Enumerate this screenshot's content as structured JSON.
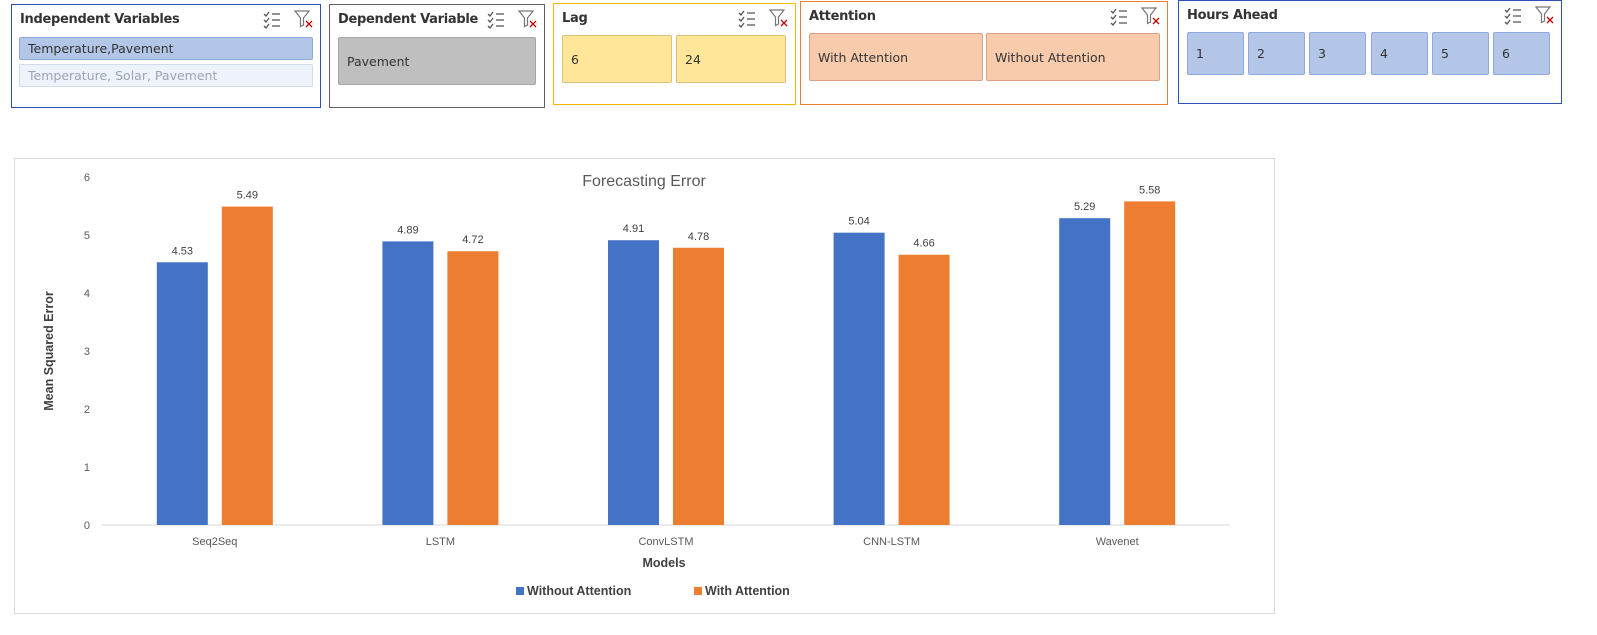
{
  "slicers": {
    "independent": {
      "title": "Independent Variables",
      "items": [
        "Temperature,Pavement",
        "Temperature, Solar, Pavement"
      ],
      "border_color": "#2e4fb5",
      "selected_fill": "#b4c6e7",
      "unselected_fill": "#eef2fa"
    },
    "dependent": {
      "title": "Dependent Variable",
      "items": [
        "Pavement"
      ],
      "border_color": "#5f5f5f",
      "fill": "#bfbfbf"
    },
    "lag": {
      "title": "Lag",
      "items": [
        "6",
        "24"
      ],
      "border_color": "#f2b800",
      "fill": "#ffe699"
    },
    "attention": {
      "title": "Attention",
      "items": [
        "With Attention",
        "Without Attention"
      ],
      "border_color": "#ed7d31",
      "fill": "#f8cbad"
    },
    "hours_ahead": {
      "title": "Hours Ahead",
      "items": [
        "1",
        "2",
        "3",
        "4",
        "5",
        "6"
      ],
      "border_color": "#2e4fb5",
      "fill": "#b4c6e7"
    }
  },
  "icons": {
    "multiselect": "multi-select-icon",
    "clear_filter": "clear-filter-icon"
  },
  "chart_data": {
    "type": "bar",
    "title": "Forecasting Error",
    "xlabel": "Models",
    "ylabel": "Mean Squared Error",
    "categories": [
      "Seq2Seq",
      "LSTM",
      "ConvLSTM",
      "CNN-LSTM",
      "Wavenet"
    ],
    "series": [
      {
        "name": "Without Attention",
        "values": [
          4.53,
          4.89,
          4.91,
          5.04,
          5.29
        ],
        "color": "#4472c4"
      },
      {
        "name": "With Attention",
        "values": [
          5.49,
          4.72,
          4.78,
          4.66,
          5.58
        ],
        "color": "#ed7d31"
      }
    ],
    "ylim": [
      0,
      6
    ],
    "yticks": [
      "0",
      "1",
      "2",
      "3",
      "4",
      "5",
      "6"
    ],
    "data_labels": true,
    "grid": false,
    "legend_position": "bottom"
  }
}
